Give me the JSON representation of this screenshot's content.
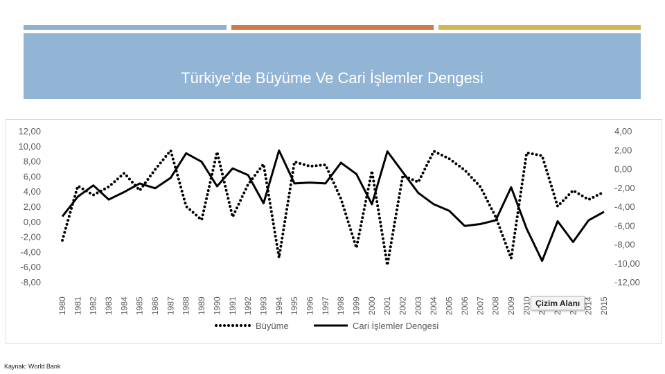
{
  "slide": {
    "title": "Türkiye’de Büyüme Ve Cari İşlemler Dengesi",
    "source": "Kaynak: World Bank",
    "tooltip": "Çizim Alanı",
    "colors": {
      "bar1": "#8fb0cf",
      "bar2": "#d07a45",
      "bar3": "#d4b552",
      "title_bg": "#93b5d5"
    }
  },
  "chart_data": {
    "type": "line",
    "title": "",
    "categories": [
      "1980",
      "1981",
      "1982",
      "1983",
      "1984",
      "1985",
      "1986",
      "1987",
      "1988",
      "1989",
      "1990",
      "1991",
      "1992",
      "1993",
      "1994",
      "1995",
      "1996",
      "1997",
      "1998",
      "1999",
      "2000",
      "2001",
      "2002",
      "2003",
      "2004",
      "2005",
      "2006",
      "2007",
      "2008",
      "2009",
      "2010",
      "2011",
      "2012",
      "2013",
      "2014",
      "2015"
    ],
    "left_axis": {
      "min": -8,
      "max": 12,
      "ticks": [
        "12,00",
        "10,00",
        "8,00",
        "6,00",
        "4,00",
        "2,00",
        "0,00",
        "-2,00",
        "-4,00",
        "-6,00",
        "-8,00"
      ]
    },
    "right_axis": {
      "min": -12,
      "max": 4,
      "ticks": [
        "4,00",
        "2,00",
        "0,00",
        "-2,00",
        "-4,00",
        "-6,00",
        "-8,00",
        "-10,00",
        "-12,00"
      ]
    },
    "legend_position": "bottom",
    "series": [
      {
        "name": "Büyüme",
        "axis": "left",
        "style": "dotted",
        "values": [
          -2.4,
          4.8,
          3.6,
          4.7,
          6.5,
          4.2,
          7.0,
          9.5,
          2.1,
          0.3,
          9.3,
          0.7,
          5.0,
          7.7,
          -4.7,
          8.0,
          7.4,
          7.6,
          3.1,
          -3.4,
          6.8,
          -5.7,
          6.2,
          5.3,
          9.4,
          8.4,
          6.9,
          4.7,
          0.7,
          -4.8,
          9.2,
          8.8,
          2.1,
          4.2,
          3.0,
          4.0
        ]
      },
      {
        "name": "Cari İşlemler Dengesi",
        "axis": "right",
        "style": "solid",
        "values": [
          -5.0,
          -2.9,
          -1.7,
          -3.2,
          -2.4,
          -1.5,
          -2.0,
          -0.9,
          1.7,
          0.8,
          -1.8,
          0.1,
          -0.6,
          -3.6,
          2.0,
          -1.5,
          -1.4,
          -1.5,
          0.7,
          -0.5,
          -3.7,
          1.9,
          -0.3,
          -2.5,
          -3.7,
          -4.4,
          -6.0,
          -5.8,
          -5.4,
          -1.9,
          -6.3,
          -9.7,
          -5.5,
          -7.7,
          -5.4,
          -4.5
        ]
      }
    ]
  }
}
